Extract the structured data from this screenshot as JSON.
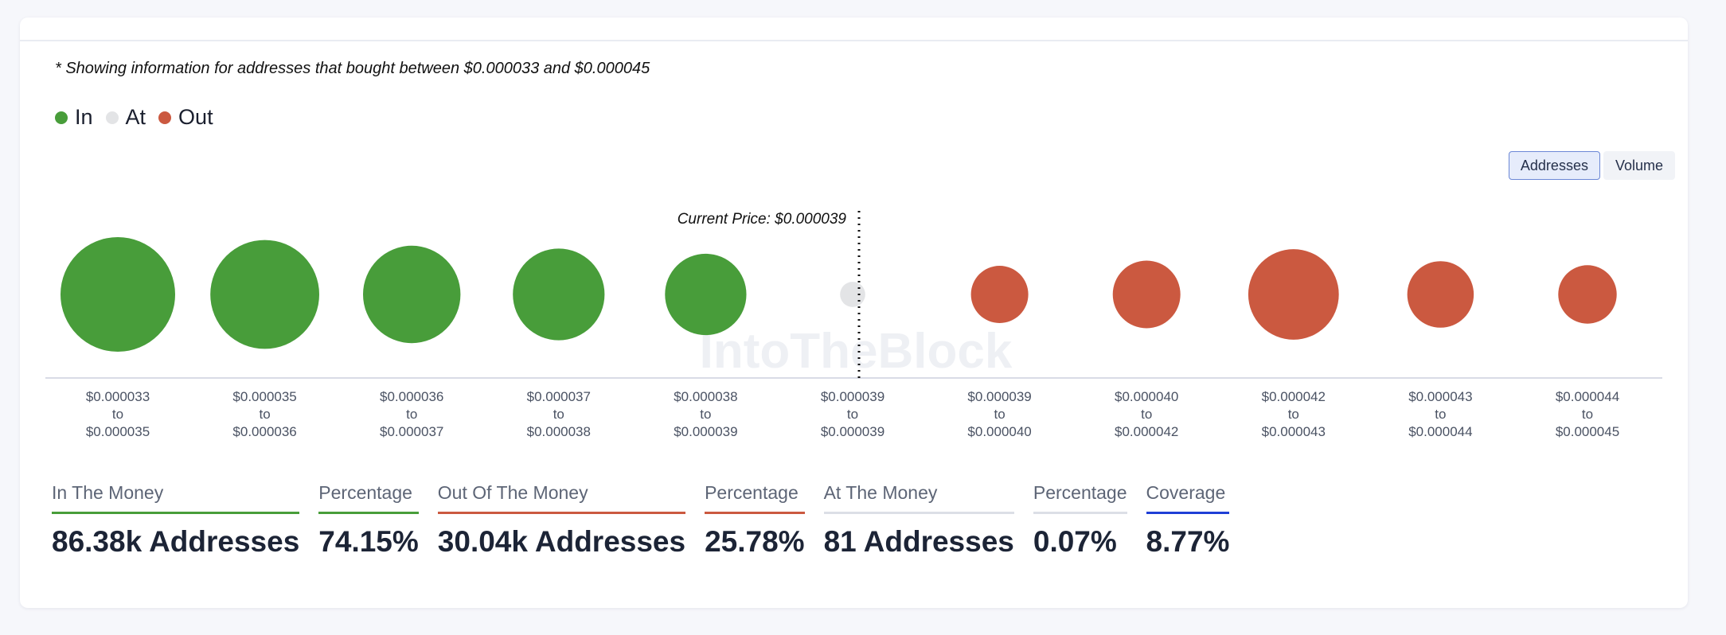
{
  "note": "* Showing information for addresses that bought between $0.000033 and $0.000045",
  "legend": [
    {
      "label": "In",
      "color": "#489d3a"
    },
    {
      "label": "At",
      "color": "#e3e4e6"
    },
    {
      "label": "Out",
      "color": "#cb5940"
    }
  ],
  "toggle": {
    "addresses": "Addresses",
    "volume": "Volume"
  },
  "watermark": "IntoTheBlock",
  "chart_data": {
    "type": "bubble",
    "title": "",
    "current_price_label": "Current Price: $0.000039",
    "current_price": 3.9e-05,
    "buckets": [
      {
        "from": "$0.000033",
        "to": "$0.000035",
        "status": "In",
        "relative_size": 1.0
      },
      {
        "from": "$0.000035",
        "to": "$0.000036",
        "status": "In",
        "relative_size": 0.95
      },
      {
        "from": "$0.000036",
        "to": "$0.000037",
        "status": "In",
        "relative_size": 0.85
      },
      {
        "from": "$0.000037",
        "to": "$0.000038",
        "status": "In",
        "relative_size": 0.8
      },
      {
        "from": "$0.000038",
        "to": "$0.000039",
        "status": "In",
        "relative_size": 0.71
      },
      {
        "from": "$0.000039",
        "to": "$0.000039",
        "status": "At",
        "relative_size": 0.22
      },
      {
        "from": "$0.000039",
        "to": "$0.000040",
        "status": "Out",
        "relative_size": 0.5
      },
      {
        "from": "$0.000040",
        "to": "$0.000042",
        "status": "Out",
        "relative_size": 0.59
      },
      {
        "from": "$0.000042",
        "to": "$0.000043",
        "status": "Out",
        "relative_size": 0.79
      },
      {
        "from": "$0.000043",
        "to": "$0.000044",
        "status": "Out",
        "relative_size": 0.58
      },
      {
        "from": "$0.000044",
        "to": "$0.000045",
        "status": "Out",
        "relative_size": 0.51
      }
    ],
    "to_word": "to"
  },
  "stats": [
    {
      "label": "In The Money",
      "value": "86.38k Addresses",
      "color": "#489d3a"
    },
    {
      "label": "Percentage",
      "value": "74.15%",
      "color": "#489d3a"
    },
    {
      "label": "Out Of The Money",
      "value": "30.04k Addresses",
      "color": "#cb5940"
    },
    {
      "label": "Percentage",
      "value": "25.78%",
      "color": "#cb5940"
    },
    {
      "label": "At The Money",
      "value": "81 Addresses",
      "color": "#dcdfe6"
    },
    {
      "label": "Percentage",
      "value": "0.07%",
      "color": "#dcdfe6"
    },
    {
      "label": "Coverage",
      "value": "8.77%",
      "color": "#1f3fd6"
    }
  ]
}
